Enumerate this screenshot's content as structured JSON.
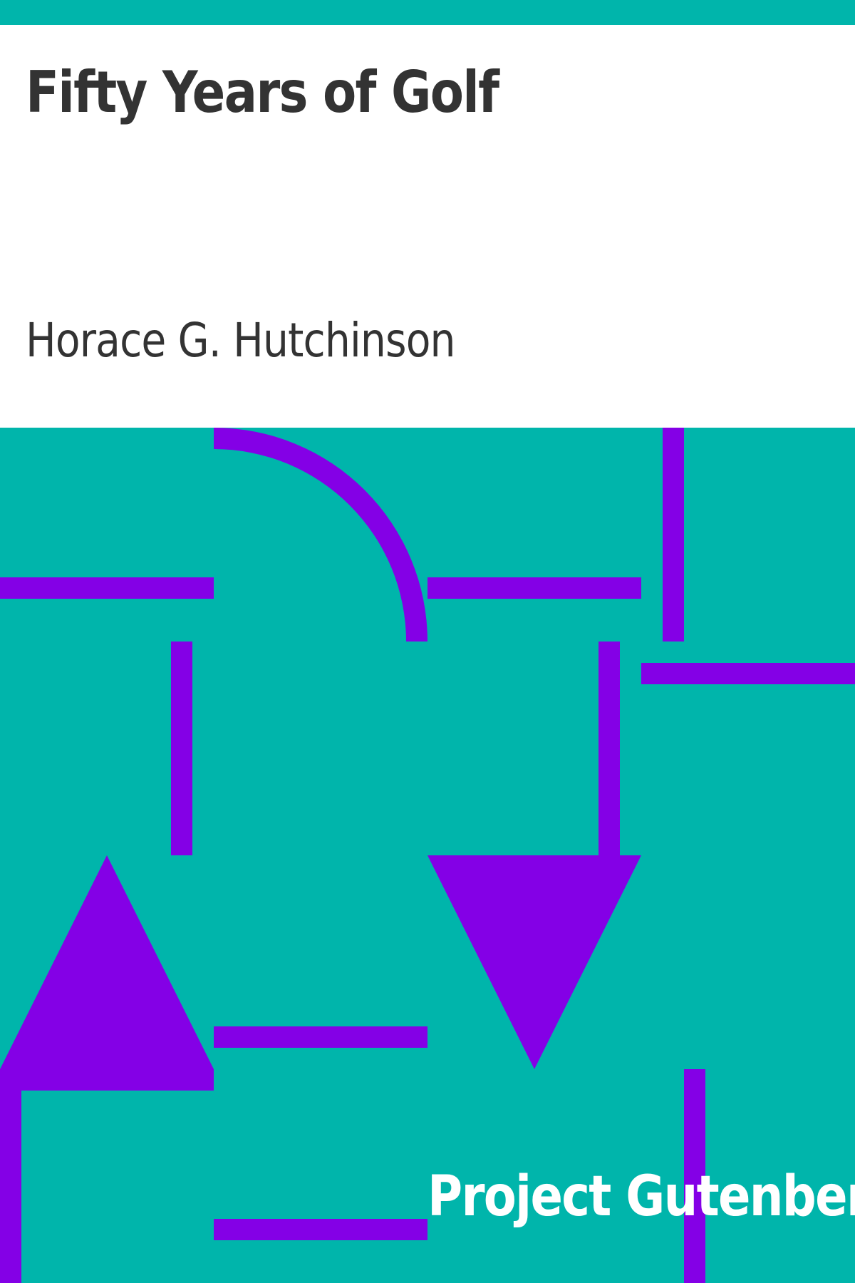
{
  "book": {
    "title": "Fifty Years of Golf",
    "author": "Horace G. Hutchinson",
    "publisher": "Project Gutenberg"
  },
  "colors": {
    "background": "#00b5ab",
    "pattern": "#8400e6",
    "title_panel": "#ffffff",
    "text": "#333333",
    "publisher_text": "#ffffff"
  }
}
